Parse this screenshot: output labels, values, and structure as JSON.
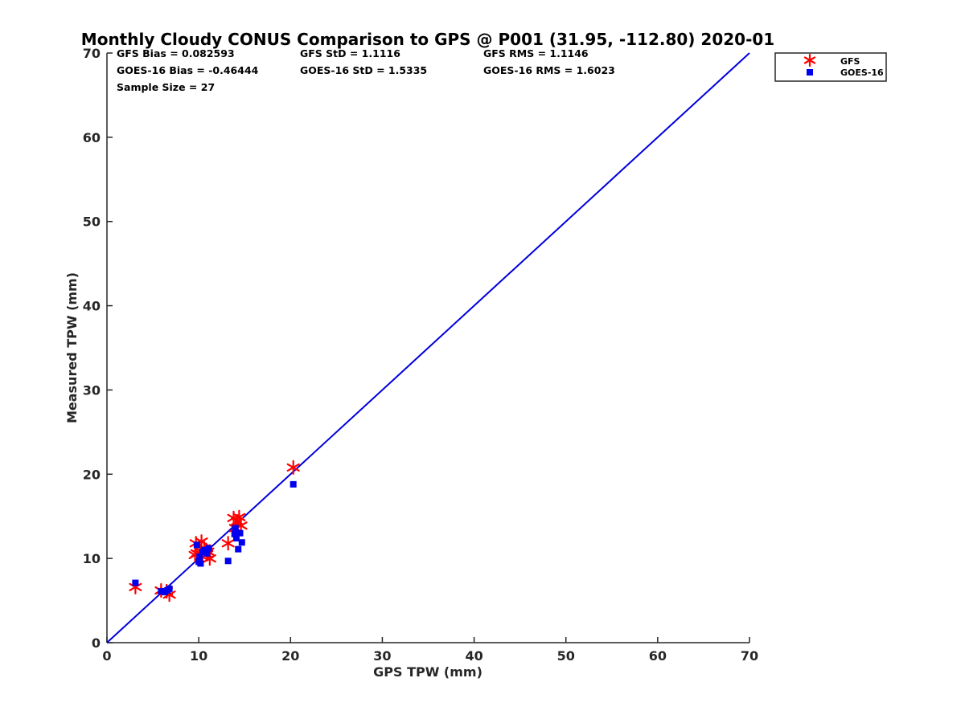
{
  "chart_data": {
    "type": "scatter",
    "title": "Monthly Cloudy CONUS Comparison to GPS @ P001 (31.95, -112.80) 2020-01",
    "xlabel": "GPS TPW (mm)",
    "ylabel": "Measured TPW (mm)",
    "xlim": [
      0,
      70
    ],
    "ylim": [
      0,
      70
    ],
    "xticks": [
      0,
      10,
      20,
      30,
      40,
      50,
      60,
      70
    ],
    "yticks": [
      0,
      10,
      20,
      30,
      40,
      50,
      60,
      70
    ],
    "grid": false,
    "legend_position": "top-right-outside",
    "stats": {
      "gfs_bias": "GFS Bias = 0.082593",
      "gfs_std": "GFS StD = 1.1116",
      "gfs_rms": "GFS RMS = 1.1146",
      "goes_bias": "GOES-16 Bias = -0.46444",
      "goes_std": "GOES-16 StD = 1.5335",
      "goes_rms": "GOES-16 RMS = 1.6023",
      "sample_size": "Sample Size = 27"
    },
    "reference_line": {
      "name": "1:1",
      "x": [
        0,
        70
      ],
      "y": [
        0,
        70
      ],
      "color": "#0000dd"
    },
    "series": [
      {
        "name": "GFS",
        "marker": "asterisk",
        "color": "#ff0000",
        "points": [
          [
            3.1,
            6.6
          ],
          [
            5.9,
            6.2
          ],
          [
            6.5,
            6.1
          ],
          [
            6.8,
            5.7
          ],
          [
            9.7,
            11.8
          ],
          [
            10.3,
            12.0
          ],
          [
            9.8,
            10.6
          ],
          [
            10.2,
            10.9
          ],
          [
            10.6,
            11.2
          ],
          [
            10.9,
            10.5
          ],
          [
            11.2,
            10.0
          ],
          [
            11.0,
            10.8
          ],
          [
            9.6,
            10.4
          ],
          [
            10.4,
            10.2
          ],
          [
            10.8,
            11.0
          ],
          [
            13.2,
            11.8
          ],
          [
            13.8,
            14.8
          ],
          [
            14.4,
            14.9
          ],
          [
            14.0,
            13.6
          ],
          [
            14.6,
            13.9
          ],
          [
            14.2,
            14.4
          ],
          [
            20.3,
            20.8
          ]
        ]
      },
      {
        "name": "GOES-16",
        "marker": "square",
        "color": "#0000ee",
        "points": [
          [
            3.1,
            7.1
          ],
          [
            5.9,
            6.1
          ],
          [
            6.3,
            6.0
          ],
          [
            6.8,
            6.4
          ],
          [
            6.6,
            6.2
          ],
          [
            9.8,
            11.6
          ],
          [
            10.0,
            9.6
          ],
          [
            10.2,
            9.4
          ],
          [
            10.4,
            10.8
          ],
          [
            10.6,
            11.0
          ],
          [
            10.9,
            10.6
          ],
          [
            11.1,
            11.2
          ],
          [
            10.1,
            10.2
          ],
          [
            13.2,
            9.7
          ],
          [
            13.9,
            12.9
          ],
          [
            14.1,
            12.4
          ],
          [
            14.3,
            11.1
          ],
          [
            14.5,
            13.0
          ],
          [
            14.7,
            11.9
          ],
          [
            14.0,
            13.6
          ],
          [
            20.3,
            18.8
          ]
        ]
      }
    ]
  }
}
